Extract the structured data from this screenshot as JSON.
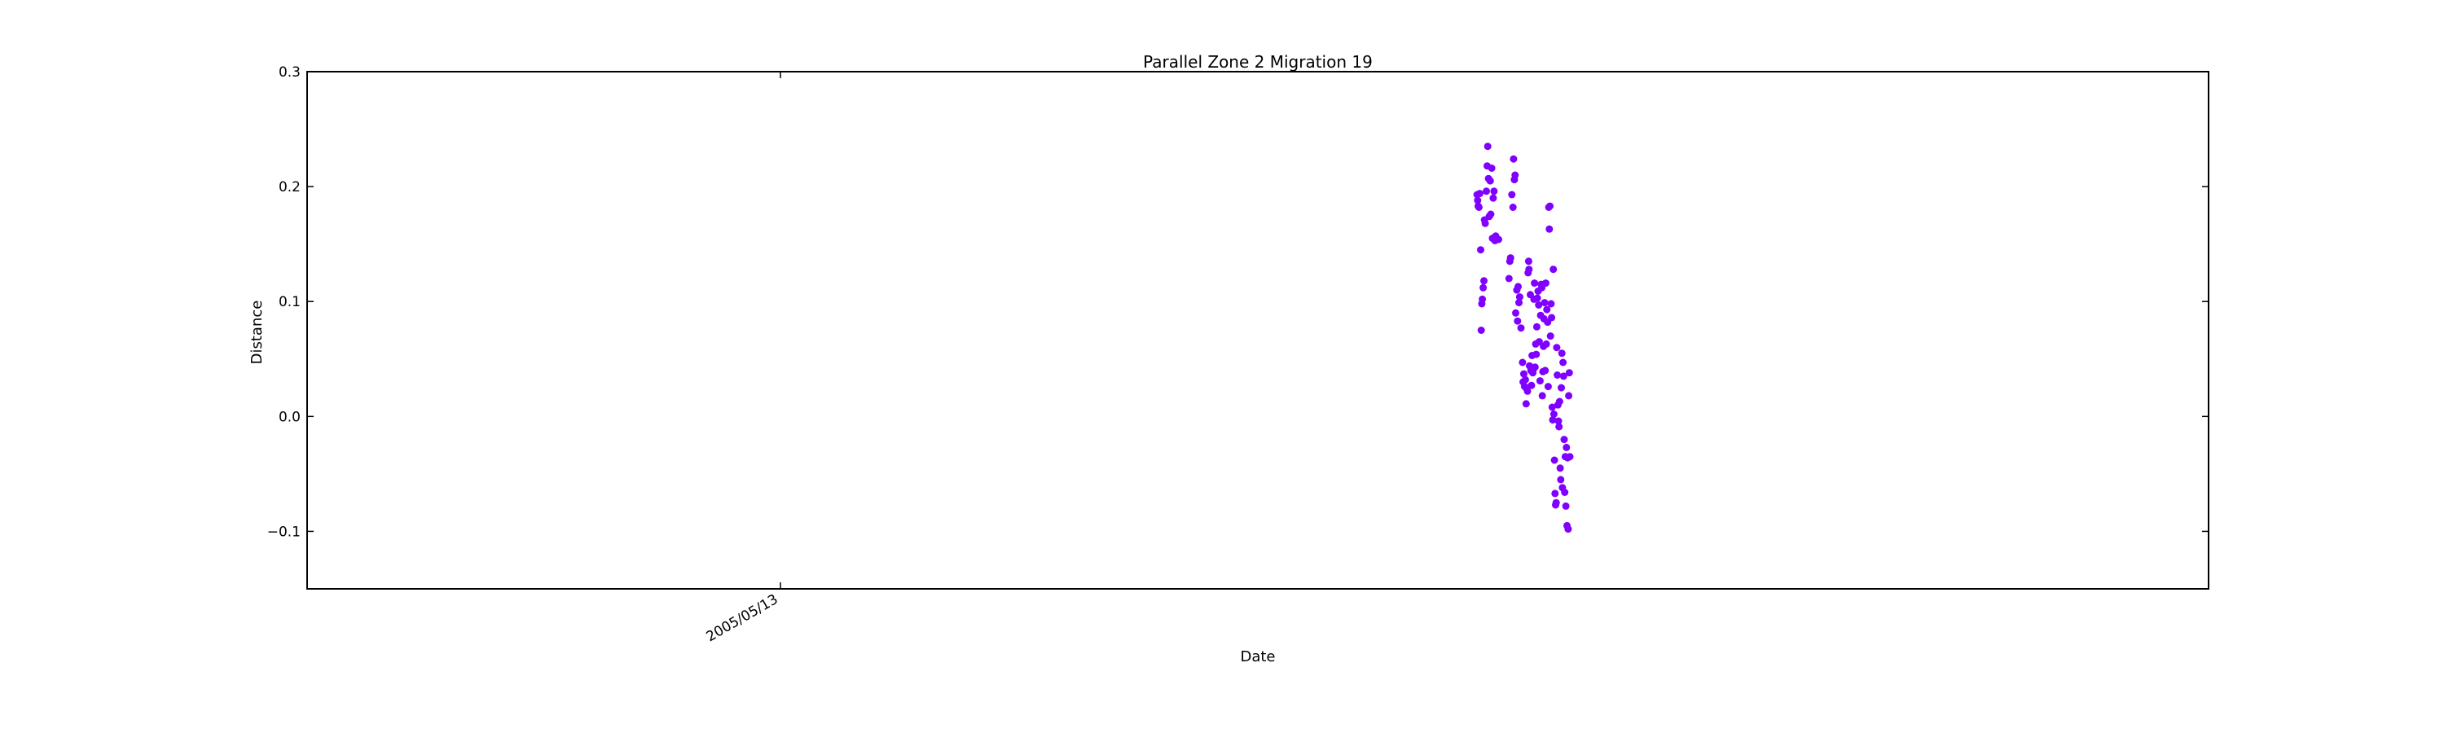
{
  "chart_data": {
    "type": "scatter",
    "title": "Parallel Zone 2 Migration 19",
    "xlabel": "Date",
    "ylabel": "Distance",
    "ylim": [
      -0.15,
      0.3
    ],
    "yticks": [
      -0.1,
      0.0,
      0.1,
      0.2,
      0.3
    ],
    "ytick_labels": [
      "−0.1",
      "0.0",
      "0.1",
      "0.2",
      "0.3"
    ],
    "xtick_labels": [
      "2005/05/13"
    ],
    "grid": false,
    "legend": "none",
    "marker_color": "#7f00ff",
    "series": [
      {
        "points": [
          [
            0.6153,
            0.193
          ],
          [
            0.6156,
            0.188
          ],
          [
            0.6159,
            0.183
          ],
          [
            0.6163,
            0.182
          ],
          [
            0.6167,
            0.194
          ],
          [
            0.6172,
            0.145
          ],
          [
            0.6175,
            0.075
          ],
          [
            0.6178,
            0.098
          ],
          [
            0.6181,
            0.102
          ],
          [
            0.6185,
            0.112
          ],
          [
            0.6189,
            0.118
          ],
          [
            0.6192,
            0.171
          ],
          [
            0.6196,
            0.168
          ],
          [
            0.6202,
            0.196
          ],
          [
            0.6206,
            0.218
          ],
          [
            0.6209,
            0.235
          ],
          [
            0.6213,
            0.207
          ],
          [
            0.6217,
            0.174
          ],
          [
            0.6222,
            0.205
          ],
          [
            0.6225,
            0.176
          ],
          [
            0.623,
            0.216
          ],
          [
            0.6234,
            0.155
          ],
          [
            0.6238,
            0.19
          ],
          [
            0.6242,
            0.196
          ],
          [
            0.6247,
            0.153
          ],
          [
            0.6251,
            0.157
          ],
          [
            0.6266,
            0.154
          ],
          [
            0.6321,
            0.12
          ],
          [
            0.6325,
            0.135
          ],
          [
            0.6329,
            0.138
          ],
          [
            0.6336,
            0.193
          ],
          [
            0.6342,
            0.182
          ],
          [
            0.6345,
            0.224
          ],
          [
            0.6349,
            0.206
          ],
          [
            0.6353,
            0.21
          ],
          [
            0.6356,
            0.09
          ],
          [
            0.6362,
            0.11
          ],
          [
            0.6366,
            0.083
          ],
          [
            0.6369,
            0.113
          ],
          [
            0.6373,
            0.099
          ],
          [
            0.6377,
            0.104
          ],
          [
            0.6384,
            0.077
          ],
          [
            0.6392,
            0.047
          ],
          [
            0.6395,
            0.03
          ],
          [
            0.6399,
            0.037
          ],
          [
            0.6403,
            0.026
          ],
          [
            0.6407,
            0.032
          ],
          [
            0.6411,
            0.011
          ],
          [
            0.6414,
            0.024
          ],
          [
            0.6418,
            0.022
          ],
          [
            0.6421,
            0.125
          ],
          [
            0.6424,
            0.135
          ],
          [
            0.6426,
            0.128
          ],
          [
            0.6429,
            0.044
          ],
          [
            0.6433,
            0.106
          ],
          [
            0.6436,
            0.04
          ],
          [
            0.6439,
            0.027
          ],
          [
            0.6442,
            0.053
          ],
          [
            0.6446,
            0.038
          ],
          [
            0.6449,
            0.041
          ],
          [
            0.6452,
            0.102
          ],
          [
            0.6455,
            0.116
          ],
          [
            0.6458,
            0.043
          ],
          [
            0.6461,
            0.063
          ],
          [
            0.6464,
            0.054
          ],
          [
            0.6467,
            0.078
          ],
          [
            0.647,
            0.103
          ],
          [
            0.6474,
            0.109
          ],
          [
            0.6477,
            0.097
          ],
          [
            0.648,
            0.065
          ],
          [
            0.6484,
            0.031
          ],
          [
            0.6487,
            0.088
          ],
          [
            0.649,
            0.115
          ],
          [
            0.6493,
            0.112
          ],
          [
            0.6496,
            0.018
          ],
          [
            0.6499,
            0.039
          ],
          [
            0.6502,
            0.061
          ],
          [
            0.6505,
            0.085
          ],
          [
            0.6508,
            0.099
          ],
          [
            0.6511,
            0.04
          ],
          [
            0.6514,
            0.116
          ],
          [
            0.6517,
            0.063
          ],
          [
            0.652,
            0.093
          ],
          [
            0.6524,
            0.082
          ],
          [
            0.6527,
            0.026
          ],
          [
            0.653,
            0.182
          ],
          [
            0.6533,
            0.163
          ],
          [
            0.6536,
            0.183
          ],
          [
            0.6539,
            0.07
          ],
          [
            0.6542,
            0.098
          ],
          [
            0.6545,
            0.086
          ],
          [
            0.6548,
            0.008
          ],
          [
            0.6551,
            -0.003
          ],
          [
            0.6554,
            0.128
          ],
          [
            0.6557,
            0.002
          ],
          [
            0.656,
            -0.038
          ],
          [
            0.6563,
            -0.067
          ],
          [
            0.6566,
            -0.077
          ],
          [
            0.6569,
            -0.075
          ],
          [
            0.6572,
            0.06
          ],
          [
            0.6575,
            0.036
          ],
          [
            0.6578,
            0.01
          ],
          [
            0.6581,
            -0.004
          ],
          [
            0.6584,
            -0.009
          ],
          [
            0.6587,
            0.013
          ],
          [
            0.659,
            -0.045
          ],
          [
            0.6593,
            -0.055
          ],
          [
            0.6596,
            0.025
          ],
          [
            0.6599,
            0.055
          ],
          [
            0.6602,
            -0.062
          ],
          [
            0.6605,
            0.047
          ],
          [
            0.6608,
            0.035
          ],
          [
            0.6611,
            -0.02
          ],
          [
            0.6614,
            -0.066
          ],
          [
            0.6617,
            -0.035
          ],
          [
            0.662,
            -0.078
          ],
          [
            0.6623,
            -0.027
          ],
          [
            0.6626,
            -0.095
          ],
          [
            0.6629,
            -0.036
          ],
          [
            0.6632,
            -0.098
          ],
          [
            0.6635,
            0.018
          ],
          [
            0.6638,
            0.038
          ],
          [
            0.6641,
            -0.035
          ]
        ]
      }
    ]
  }
}
